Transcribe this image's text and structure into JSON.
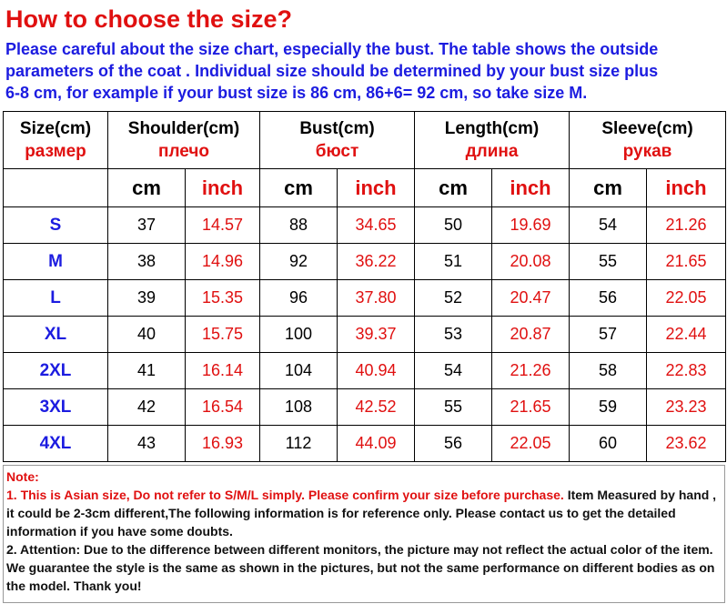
{
  "header": {
    "title": "How to choose the size?",
    "intro": [
      "Please careful about the size chart, especially the bust. The table shows the outside",
      "parameters of the coat . Individual size should be determined by your bust size plus",
      "6-8 cm, for example if your bust size is 86 cm, 86+6= 92 cm, so take size  M."
    ]
  },
  "table": {
    "columns": [
      {
        "en": "Size(cm)",
        "ru": "размер"
      },
      {
        "en": "Shoulder(cm)",
        "ru": "плечо"
      },
      {
        "en": "Bust(cm)",
        "ru": "бюст"
      },
      {
        "en": "Length(cm)",
        "ru": "длина"
      },
      {
        "en": "Sleeve(cm)",
        "ru": "рукав"
      }
    ],
    "units": [
      "cm",
      "inch",
      "cm",
      "inch",
      "cm",
      "inch",
      "cm",
      "inch"
    ],
    "rows": [
      [
        "S",
        "37",
        "14.57",
        "88",
        "34.65",
        "50",
        "19.69",
        "54",
        "21.26"
      ],
      [
        "M",
        "38",
        "14.96",
        "92",
        "36.22",
        "51",
        "20.08",
        "55",
        "21.65"
      ],
      [
        "L",
        "39",
        "15.35",
        "96",
        "37.80",
        "52",
        "20.47",
        "56",
        "22.05"
      ],
      [
        "XL",
        "40",
        "15.75",
        "100",
        "39.37",
        "53",
        "20.87",
        "57",
        "22.44"
      ],
      [
        "2XL",
        "41",
        "16.14",
        "104",
        "40.94",
        "54",
        "21.26",
        "58",
        "22.83"
      ],
      [
        "3XL",
        "42",
        "16.54",
        "108",
        "42.52",
        "55",
        "21.65",
        "59",
        "23.23"
      ],
      [
        "4XL",
        "43",
        "16.93",
        "112",
        "44.09",
        "56",
        "22.05",
        "60",
        "23.62"
      ]
    ]
  },
  "notes": {
    "label": "Note:",
    "item1_red": "1. This is Asian size, Do not refer to S/M/L simply. Please confirm your size before purchase.",
    "item1_black": "Item Measured by hand , it could be 2-3cm different,The following information is for reference only. Please contact us to get the detailed information if you have some doubts.",
    "item2": "2. Attention: Due to the difference between different monitors, the picture may not reflect the actual color of the item. We guarantee the style is the same as shown in the pictures, but not the same performance on different bodies as on the model. Thank you!"
  }
}
